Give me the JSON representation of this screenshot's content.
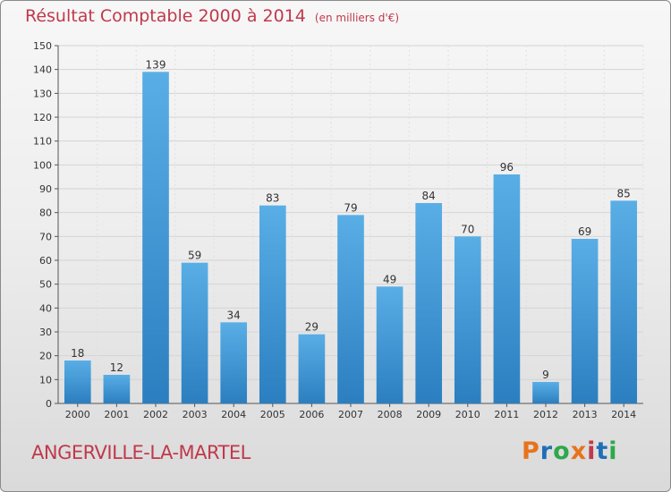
{
  "header": {
    "title": "Résultat Comptable 2000 à 2014",
    "unit": "(en milliers d'€)"
  },
  "footer": {
    "commune": "ANGERVILLE-LA-MARTEL",
    "logo_text": "Proxiti",
    "logo_colors": [
      "#e8731c",
      "#1f6fb5",
      "#2ea84a",
      "#e8731c",
      "#c0394b",
      "#1f6fb5",
      "#2ea84a"
    ]
  },
  "colors": {
    "title": "#c0394b",
    "bar_top": "#5aaee6",
    "bar_bottom": "#2b7fc0"
  },
  "chart_data": {
    "type": "bar",
    "categories": [
      "2000",
      "2001",
      "2002",
      "2003",
      "2004",
      "2005",
      "2006",
      "2007",
      "2008",
      "2009",
      "2010",
      "2011",
      "2012",
      "2013",
      "2014"
    ],
    "values": [
      18,
      12,
      139,
      59,
      34,
      83,
      29,
      79,
      49,
      84,
      70,
      96,
      9,
      69,
      85
    ],
    "title": "Résultat Comptable 2000 à 2014",
    "xlabel": "",
    "ylabel": "",
    "ylim": [
      0,
      150
    ],
    "yticks": [
      0,
      10,
      20,
      30,
      40,
      50,
      60,
      70,
      80,
      90,
      100,
      110,
      120,
      130,
      140,
      150
    ],
    "grid": true,
    "legend": "none"
  }
}
